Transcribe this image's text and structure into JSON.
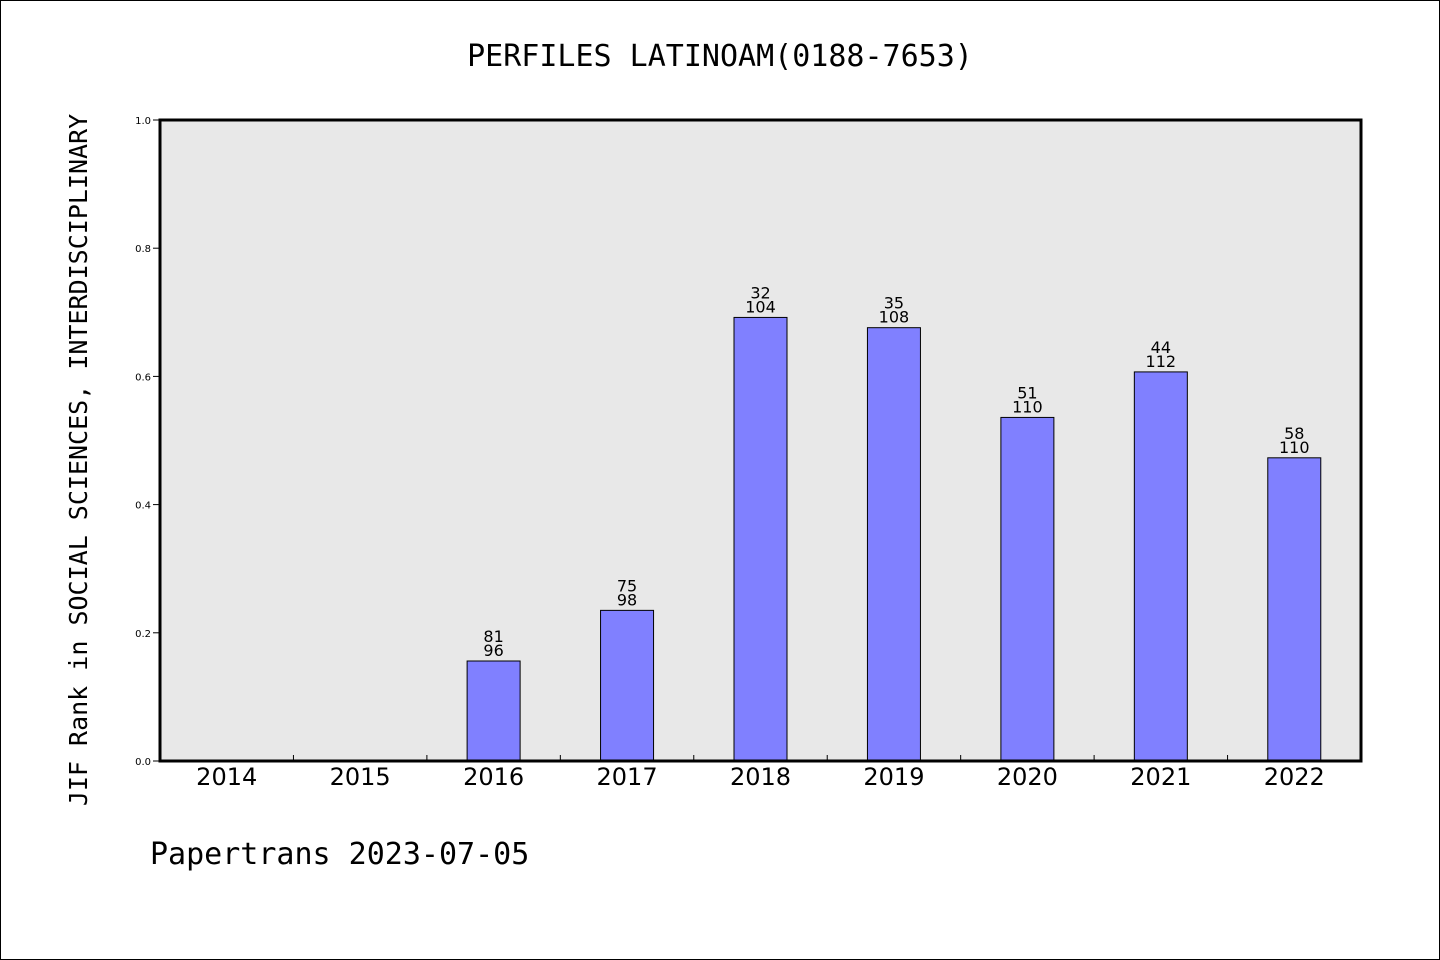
{
  "chart_data": {
    "type": "bar",
    "title": "PERFILES LATINOAM(0188-7653)",
    "ylabel": "JIF Rank in SOCIAL SCIENCES, INTERDISCIPLINARY",
    "xlabel": "",
    "ylim": [
      0,
      1
    ],
    "yticks": [
      "0.0",
      "0.2",
      "0.4",
      "0.6",
      "0.8",
      "1.0"
    ],
    "categories": [
      "2014",
      "2015",
      "2016",
      "2017",
      "2018",
      "2019",
      "2020",
      "2021",
      "2022"
    ],
    "values": [
      null,
      null,
      0.156,
      0.235,
      0.692,
      0.676,
      0.536,
      0.607,
      0.473
    ],
    "rank": [
      null,
      null,
      "81",
      "75",
      "32",
      "35",
      "51",
      "44",
      "58"
    ],
    "total": [
      null,
      null,
      "96",
      "98",
      "104",
      "108",
      "110",
      "112",
      "110"
    ],
    "bar_color": "#8080ff",
    "plot_background": "#e8e8e8",
    "grid": false,
    "legend": "none"
  },
  "footer": "Papertrans 2023-07-05"
}
